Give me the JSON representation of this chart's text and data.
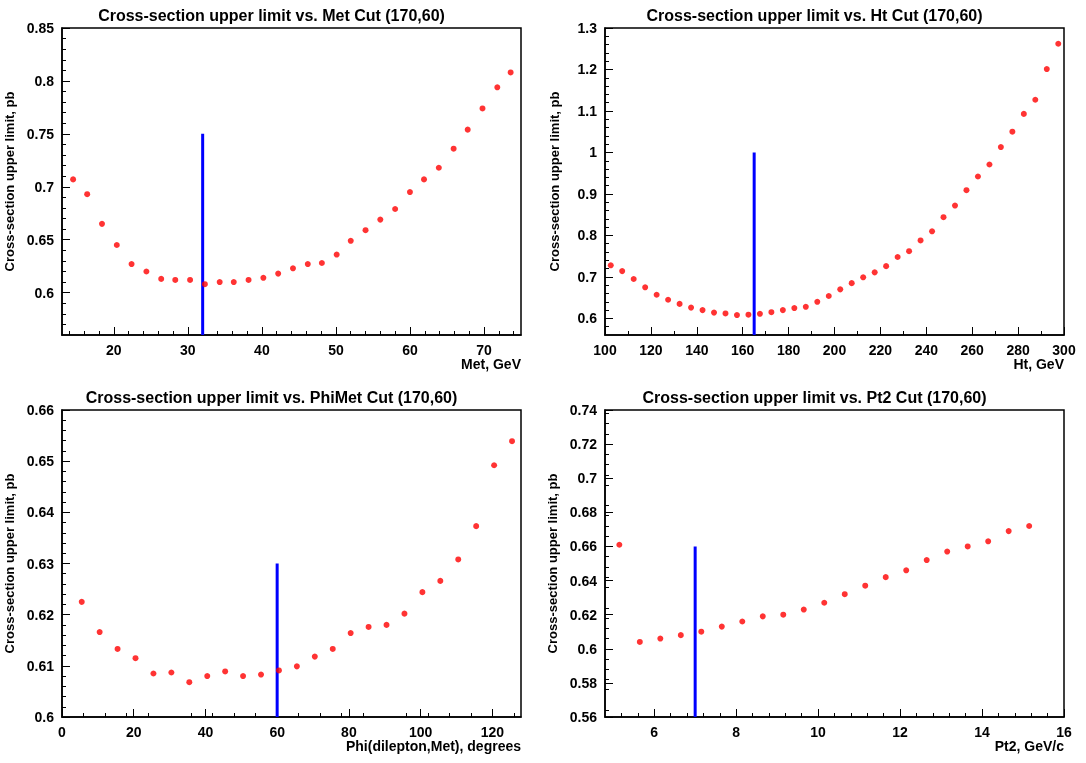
{
  "chart_data": [
    {
      "type": "scatter",
      "title": "Cross-section upper limit vs. Met Cut (170,60)",
      "xlabel": "Met, GeV",
      "ylabel": "Cross-section upper limit, pb",
      "xlim": [
        13,
        75
      ],
      "xticks": [
        20,
        30,
        40,
        50,
        60,
        70
      ],
      "ylim": [
        0.56,
        0.85
      ],
      "yticks": [
        0.6,
        0.65,
        0.7,
        0.75,
        0.8,
        0.85
      ],
      "marker": "circle",
      "series": [
        {
          "color": "#ff0000",
          "x": [
            14.5,
            16.4,
            18.4,
            20.4,
            22.4,
            24.4,
            26.4,
            28.3,
            30.3,
            32.3,
            34.3,
            36.2,
            38.2,
            40.2,
            42.2,
            44.2,
            46.2,
            48.1,
            50.1,
            52.0,
            54.0,
            56.0,
            58.0,
            60.0,
            61.9,
            63.9,
            65.9,
            67.8,
            69.8,
            71.8,
            73.6
          ],
          "values": [
            0.707,
            0.693,
            0.665,
            0.645,
            0.627,
            0.62,
            0.613,
            0.612,
            0.612,
            0.608,
            0.61,
            0.61,
            0.612,
            0.614,
            0.618,
            0.623,
            0.627,
            0.628,
            0.636,
            0.649,
            0.659,
            0.669,
            0.679,
            0.695,
            0.707,
            0.718,
            0.736,
            0.754,
            0.774,
            0.794,
            0.808
          ]
        },
        {
          "type": "line",
          "marker": "none",
          "color": "#0000ff",
          "x": [
            32,
            32
          ],
          "values": [
            0.56,
            0.75
          ]
        }
      ]
    },
    {
      "type": "scatter",
      "title": "Cross-section upper limit vs. Ht Cut (170,60)",
      "xlabel": "Ht, GeV",
      "ylabel": "Cross-section upper limit, pb",
      "xlim": [
        100,
        300
      ],
      "xticks": [
        100,
        120,
        140,
        160,
        180,
        200,
        220,
        240,
        260,
        280,
        300
      ],
      "ylim": [
        0.56,
        1.3
      ],
      "yticks": [
        0.6,
        0.7,
        0.8,
        0.9,
        1,
        1.1,
        1.2,
        1.3
      ],
      "marker": "circle",
      "series": [
        {
          "color": "#ff0000",
          "x": [
            102.5,
            107.5,
            112.5,
            117.5,
            122.5,
            127.5,
            132.5,
            137.5,
            142.5,
            147.5,
            152.5,
            157.5,
            162.5,
            167.5,
            172.5,
            177.5,
            182.5,
            187.5,
            192.5,
            197.5,
            202.5,
            207.5,
            212.5,
            217.5,
            222.5,
            227.5,
            232.5,
            237.5,
            242.5,
            247.5,
            252.5,
            257.5,
            262.5,
            267.5,
            272.5,
            277.5,
            282.5,
            287.5,
            292.5,
            297.5
          ],
          "values": [
            0.728,
            0.714,
            0.695,
            0.675,
            0.657,
            0.645,
            0.635,
            0.626,
            0.62,
            0.614,
            0.612,
            0.608,
            0.609,
            0.611,
            0.615,
            0.62,
            0.625,
            0.628,
            0.64,
            0.654,
            0.67,
            0.685,
            0.699,
            0.711,
            0.726,
            0.748,
            0.762,
            0.788,
            0.81,
            0.844,
            0.872,
            0.909,
            0.942,
            0.971,
            1.013,
            1.05,
            1.093,
            1.127,
            1.201,
            1.262
          ]
        },
        {
          "type": "line",
          "marker": "none",
          "color": "#0000ff",
          "x": [
            165,
            165
          ],
          "values": [
            0.56,
            1.0
          ]
        }
      ]
    },
    {
      "type": "scatter",
      "title": "Cross-section upper limit vs. PhiMet Cut (170,60)",
      "xlabel": "Phi(dilepton,Met), degrees",
      "ylabel": "Cross-section upper limit, pb",
      "xlim": [
        0,
        128
      ],
      "xticks": [
        0,
        20,
        40,
        60,
        80,
        100,
        120
      ],
      "ylim": [
        0.6,
        0.66
      ],
      "yticks": [
        0.6,
        0.61,
        0.62,
        0.63,
        0.64,
        0.65,
        0.66
      ],
      "marker": "circle",
      "series": [
        {
          "color": "#ff0000",
          "x": [
            5.5,
            10.5,
            15.5,
            20.5,
            25.5,
            30.5,
            35.5,
            40.5,
            45.5,
            50.5,
            55.5,
            60.5,
            65.5,
            70.5,
            75.5,
            80.5,
            85.5,
            90.5,
            95.5,
            100.5,
            105.5,
            110.5,
            115.5,
            120.5,
            125.5
          ],
          "values": [
            0.6225,
            0.6166,
            0.6133,
            0.6115,
            0.6085,
            0.6087,
            0.6068,
            0.608,
            0.6089,
            0.608,
            0.6083,
            0.6091,
            0.6099,
            0.6118,
            0.6133,
            0.6164,
            0.6176,
            0.618,
            0.6202,
            0.6244,
            0.6266,
            0.6308,
            0.6373,
            0.6492,
            0.6539
          ]
        },
        {
          "type": "line",
          "marker": "none",
          "color": "#0000ff",
          "x": [
            60,
            60
          ],
          "values": [
            0.6,
            0.63
          ]
        }
      ]
    },
    {
      "type": "scatter",
      "title": "Cross-section upper limit vs. Pt2 Cut (170,60)",
      "xlabel": "Pt2, GeV/c",
      "ylabel": "Cross-section upper limit, pb",
      "xlim": [
        4.8,
        16
      ],
      "xticks": [
        6,
        8,
        10,
        12,
        14,
        16
      ],
      "ylim": [
        0.56,
        0.74
      ],
      "yticks": [
        0.56,
        0.58,
        0.6,
        0.62,
        0.64,
        0.66,
        0.68,
        0.7,
        0.72,
        0.74
      ],
      "marker": "circle",
      "series": [
        {
          "color": "#ff0000",
          "x": [
            5.15,
            5.65,
            6.15,
            6.65,
            7.15,
            7.65,
            8.15,
            8.65,
            9.15,
            9.65,
            10.15,
            10.65,
            11.15,
            11.65,
            12.15,
            12.65,
            13.15,
            13.65,
            14.15,
            14.65,
            15.15
          ],
          "values": [
            0.661,
            0.604,
            0.606,
            0.608,
            0.61,
            0.613,
            0.616,
            0.619,
            0.62,
            0.623,
            0.627,
            0.632,
            0.637,
            0.642,
            0.646,
            0.652,
            0.657,
            0.66,
            0.663,
            0.669,
            0.672
          ]
        },
        {
          "type": "line",
          "marker": "none",
          "color": "#0000ff",
          "x": [
            7,
            7
          ],
          "values": [
            0.56,
            0.66
          ]
        }
      ]
    }
  ]
}
